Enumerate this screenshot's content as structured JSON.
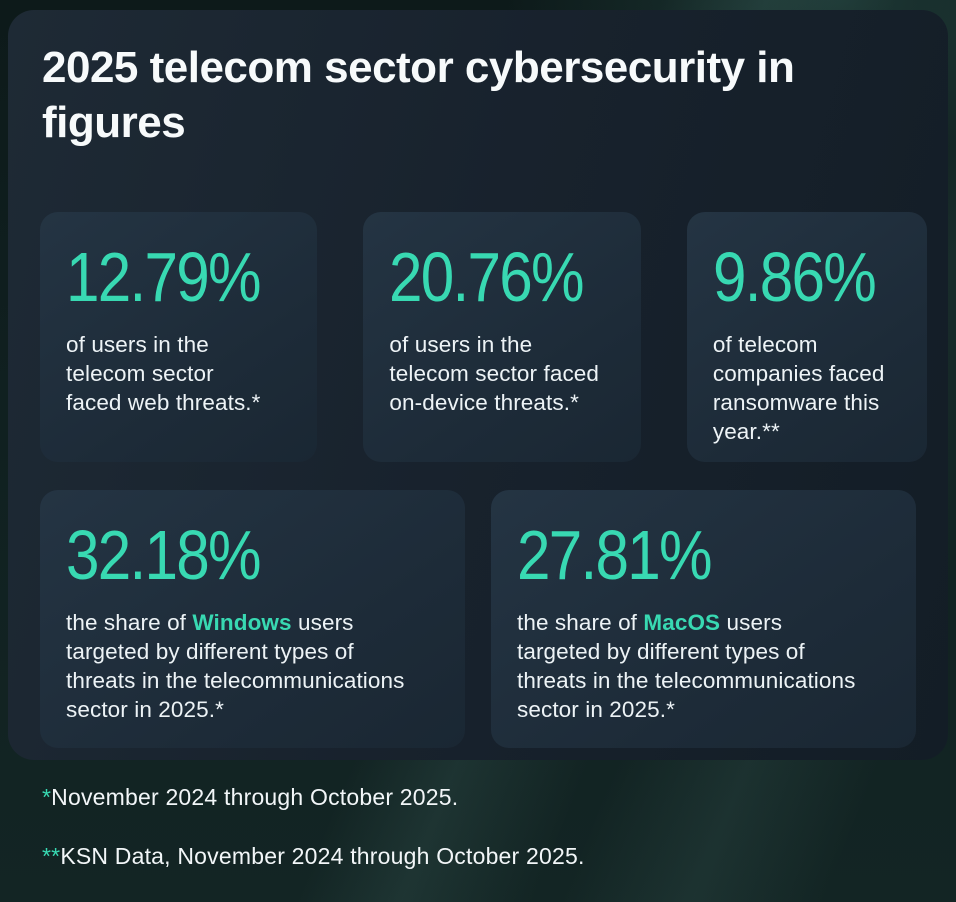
{
  "accent_color": "#38d9b2",
  "title": {
    "lines": [
      "2025 telecom sector cybersecurity in",
      "figures"
    ]
  },
  "cards": [
    {
      "value": "12.79%",
      "lines": [
        {
          "pre": "of users in the",
          "hl": "",
          "post": ""
        },
        {
          "pre": "telecom sector",
          "hl": "",
          "post": ""
        },
        {
          "pre": "faced web threats.*",
          "hl": "",
          "post": ""
        }
      ]
    },
    {
      "value": "20.76%",
      "lines": [
        {
          "pre": "of users in the",
          "hl": "",
          "post": ""
        },
        {
          "pre": "telecom sector faced",
          "hl": "",
          "post": ""
        },
        {
          "pre": "on-device threats.*",
          "hl": "",
          "post": ""
        }
      ]
    },
    {
      "value": "9.86%",
      "lines": [
        {
          "pre": "of telecom",
          "hl": "",
          "post": ""
        },
        {
          "pre": "companies faced",
          "hl": "",
          "post": ""
        },
        {
          "pre": "ransomware this",
          "hl": "",
          "post": ""
        },
        {
          "pre": "year.**",
          "hl": "",
          "post": ""
        }
      ]
    },
    {
      "value": "32.18%",
      "lines": [
        {
          "pre": "the share of ",
          "hl": "Windows",
          "post": " users"
        },
        {
          "pre": "targeted by different types of",
          "hl": "",
          "post": ""
        },
        {
          "pre": "threats in the telecommunications",
          "hl": "",
          "post": ""
        },
        {
          "pre": "sector in 2025.*",
          "hl": "",
          "post": ""
        }
      ]
    },
    {
      "value": "27.81%",
      "lines": [
        {
          "pre": "the share of ",
          "hl": "MacOS",
          "post": " users"
        },
        {
          "pre": "targeted by different types of",
          "hl": "",
          "post": ""
        },
        {
          "pre": "threats in the telecommunications",
          "hl": "",
          "post": ""
        },
        {
          "pre": "sector in 2025.*",
          "hl": "",
          "post": ""
        }
      ]
    }
  ],
  "footnotes": [
    {
      "marker": "*",
      "text": "November 2024 through October 2025."
    },
    {
      "marker": "**",
      "text": "KSN Data, November 2024 through October 2025."
    }
  ]
}
